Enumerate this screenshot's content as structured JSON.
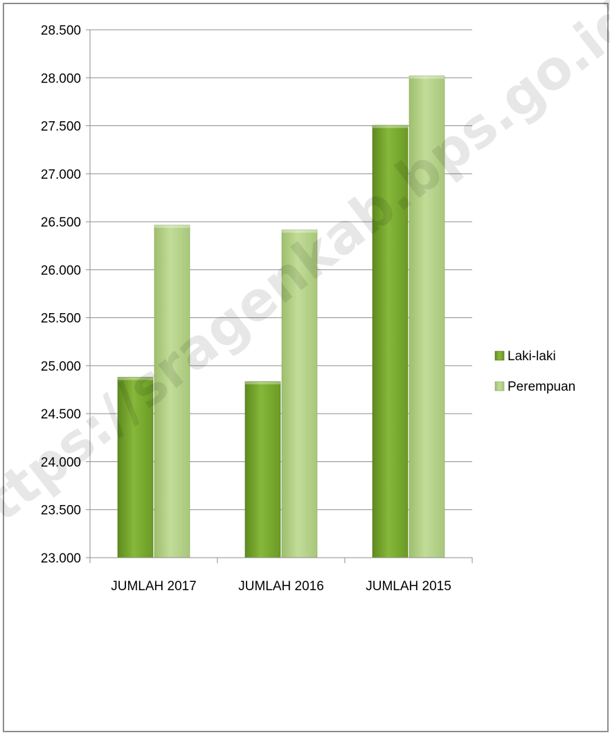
{
  "chart_data": {
    "type": "bar",
    "categories": [
      "JUMLAH 2017",
      "JUMLAH 2016",
      "JUMLAH 2015"
    ],
    "series": [
      {
        "name": "Laki-laki",
        "values": [
          24880,
          24835,
          27505
        ],
        "color": "#7aab2c"
      },
      {
        "name": "Perempuan",
        "values": [
          26465,
          26415,
          28020
        ],
        "color": "#b5d18a"
      }
    ],
    "yticks": [
      "23.000",
      "23.500",
      "24.000",
      "24.500",
      "25.000",
      "25.500",
      "26.000",
      "26.500",
      "27.000",
      "27.500",
      "28.000",
      "28.500"
    ],
    "ylim": [
      23000,
      28500
    ],
    "grid": true,
    "legend_position": "right"
  },
  "watermark": {
    "text": "https://sragenkab.bps.go.id"
  }
}
